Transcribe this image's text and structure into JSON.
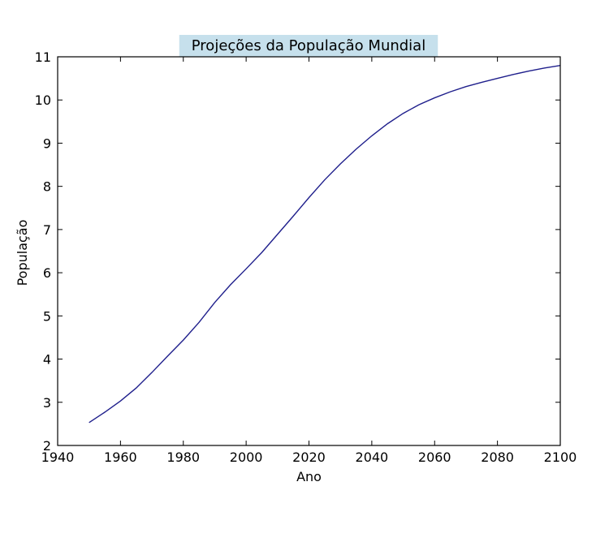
{
  "chart_data": {
    "type": "line",
    "title": "Projeções da População Mundial",
    "xlabel": "Ano",
    "ylabel": "População",
    "xlim": [
      1940,
      2100
    ],
    "ylim": [
      2,
      11
    ],
    "xticks": [
      1940,
      1960,
      1980,
      2000,
      2020,
      2040,
      2060,
      2080,
      2100
    ],
    "yticks": [
      2,
      3,
      4,
      5,
      6,
      7,
      8,
      9,
      10,
      11
    ],
    "grid": false,
    "title_background": "#c6e0ec",
    "series": [
      {
        "color": "#1f1f8c",
        "x": [
          1950,
          1955,
          1960,
          1965,
          1970,
          1975,
          1980,
          1985,
          1990,
          1995,
          2000,
          2005,
          2010,
          2015,
          2020,
          2025,
          2030,
          2035,
          2040,
          2045,
          2050,
          2055,
          2060,
          2065,
          2070,
          2075,
          2080,
          2085,
          2090,
          2095,
          2100
        ],
        "y": [
          2.53,
          2.77,
          3.03,
          3.33,
          3.69,
          4.07,
          4.44,
          4.85,
          5.31,
          5.72,
          6.09,
          6.47,
          6.89,
          7.31,
          7.74,
          8.15,
          8.52,
          8.86,
          9.17,
          9.45,
          9.69,
          9.89,
          10.05,
          10.19,
          10.31,
          10.41,
          10.5,
          10.59,
          10.67,
          10.74,
          10.8
        ]
      }
    ]
  }
}
